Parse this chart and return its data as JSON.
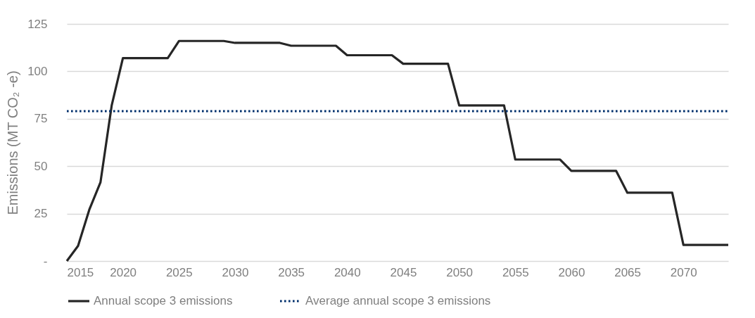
{
  "chart_data": {
    "type": "line",
    "ylabel": "Emissions (MT CO₂ -e)",
    "x": [
      2015,
      2016,
      2017,
      2018,
      2019,
      2020,
      2021,
      2022,
      2023,
      2024,
      2025,
      2026,
      2027,
      2028,
      2029,
      2030,
      2031,
      2032,
      2033,
      2034,
      2035,
      2036,
      2037,
      2038,
      2039,
      2040,
      2041,
      2042,
      2043,
      2044,
      2045,
      2046,
      2047,
      2048,
      2049,
      2050,
      2051,
      2052,
      2053,
      2054,
      2055,
      2056,
      2057,
      2058,
      2059,
      2060,
      2061,
      2062,
      2063,
      2064,
      2065,
      2066,
      2067,
      2068,
      2069,
      2070,
      2071,
      2072,
      2073,
      2074
    ],
    "series": [
      {
        "name": "Annual scope 3 emissions",
        "color": "#262626",
        "line_style": "solid",
        "values": [
          0,
          8,
          27,
          41.5,
          82,
          107,
          107,
          107,
          107,
          107,
          116,
          116,
          116,
          116,
          116,
          115,
          115,
          115,
          115,
          115,
          113.5,
          113.5,
          113.5,
          113.5,
          113.5,
          108.5,
          108.5,
          108.5,
          108.5,
          108.5,
          104,
          104,
          104,
          104,
          104,
          82,
          82,
          82,
          82,
          82,
          53.5,
          53.5,
          53.5,
          53.5,
          53.5,
          47.5,
          47.5,
          47.5,
          47.5,
          47.5,
          36,
          36,
          36,
          36,
          36,
          8.5,
          8.5,
          8.5,
          8.5,
          8.5
        ]
      },
      {
        "name": "Average annual scope 3 emissions",
        "color": "#002f6c",
        "line_style": "dotted",
        "values": [
          79,
          79,
          79,
          79,
          79,
          79,
          79,
          79,
          79,
          79,
          79,
          79,
          79,
          79,
          79,
          79,
          79,
          79,
          79,
          79,
          79,
          79,
          79,
          79,
          79,
          79,
          79,
          79,
          79,
          79,
          79,
          79,
          79,
          79,
          79,
          79,
          79,
          79,
          79,
          79,
          79,
          79,
          79,
          79,
          79,
          79,
          79,
          79,
          79,
          79,
          79,
          79,
          79,
          79,
          79,
          79,
          79,
          79,
          79,
          79
        ]
      }
    ],
    "xlim": [
      2015,
      2074
    ],
    "xticks": [
      2015,
      2020,
      2025,
      2030,
      2035,
      2040,
      2045,
      2050,
      2055,
      2060,
      2065,
      2070
    ],
    "ylim": [
      0,
      125
    ],
    "yticks": [
      {
        "value": 0,
        "label": "-"
      },
      25,
      50,
      75,
      100,
      125
    ],
    "grid": "y",
    "legend": "bottom",
    "marker": "none"
  }
}
